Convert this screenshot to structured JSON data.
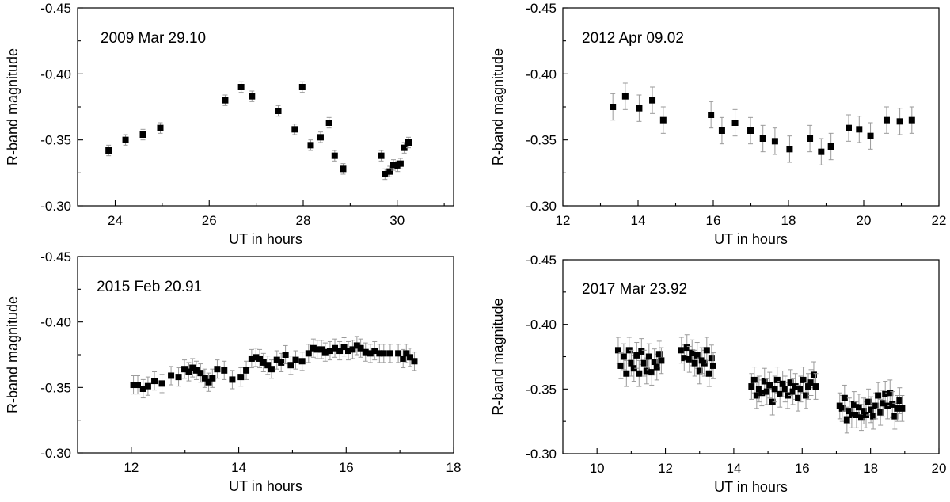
{
  "chart_data": [
    {
      "type": "scatter",
      "title": "2009 Mar 29.10",
      "xlabel": "UT in hours",
      "ylabel": "R-band magnitude",
      "xlim": [
        23.2,
        31.2
      ],
      "ylim": [
        -0.3,
        -0.45
      ],
      "xticks": [
        24,
        26,
        28,
        30
      ],
      "xtick_labels": [
        "24",
        "26",
        "28",
        "30"
      ],
      "yticks": [
        -0.45,
        -0.4,
        -0.35,
        -0.3
      ],
      "ytick_labels": [
        "-0.45",
        "-0.40",
        "-0.35",
        "-0.30"
      ],
      "error_bar": 0.004,
      "points": [
        [
          23.86,
          -0.342
        ],
        [
          24.22,
          -0.35
        ],
        [
          24.59,
          -0.354
        ],
        [
          24.96,
          -0.359
        ],
        [
          26.34,
          -0.38
        ],
        [
          26.68,
          -0.39
        ],
        [
          26.91,
          -0.383
        ],
        [
          27.47,
          -0.372
        ],
        [
          27.82,
          -0.358
        ],
        [
          27.98,
          -0.39
        ],
        [
          28.16,
          -0.346
        ],
        [
          28.37,
          -0.352
        ],
        [
          28.55,
          -0.363
        ],
        [
          28.67,
          -0.338
        ],
        [
          28.85,
          -0.328
        ],
        [
          29.66,
          -0.338
        ],
        [
          29.74,
          -0.324
        ],
        [
          29.84,
          -0.326
        ],
        [
          29.92,
          -0.331
        ],
        [
          30.01,
          -0.33
        ],
        [
          30.07,
          -0.332
        ],
        [
          30.15,
          -0.344
        ],
        [
          30.24,
          -0.348
        ]
      ]
    },
    {
      "type": "scatter",
      "title": "2012 Apr 09.02",
      "xlabel": "UT in hours",
      "ylabel": "R-band magnitude",
      "xlim": [
        12,
        22
      ],
      "ylim": [
        -0.3,
        -0.45
      ],
      "xticks": [
        12,
        14,
        16,
        18,
        20,
        22
      ],
      "xtick_labels": [
        "12",
        "14",
        "16",
        "18",
        "20",
        "22"
      ],
      "yticks": [
        -0.45,
        -0.4,
        -0.35,
        -0.3
      ],
      "ytick_labels": [
        "-0.45",
        "-0.40",
        "-0.35",
        "-0.30"
      ],
      "error_bar": 0.01,
      "points": [
        [
          13.33,
          -0.375
        ],
        [
          13.66,
          -0.383
        ],
        [
          14.03,
          -0.374
        ],
        [
          14.38,
          -0.38
        ],
        [
          14.67,
          -0.365
        ],
        [
          15.94,
          -0.369
        ],
        [
          16.23,
          -0.357
        ],
        [
          16.58,
          -0.363
        ],
        [
          16.99,
          -0.357
        ],
        [
          17.32,
          -0.351
        ],
        [
          17.64,
          -0.349
        ],
        [
          18.03,
          -0.343
        ],
        [
          18.57,
          -0.351
        ],
        [
          18.87,
          -0.341
        ],
        [
          19.13,
          -0.345
        ],
        [
          19.6,
          -0.359
        ],
        [
          19.88,
          -0.358
        ],
        [
          20.18,
          -0.353
        ],
        [
          20.61,
          -0.365
        ],
        [
          20.96,
          -0.364
        ],
        [
          21.28,
          -0.365
        ]
      ]
    },
    {
      "type": "scatter",
      "title": "2015 Feb 20.91",
      "xlabel": "UT in hours",
      "ylabel": "R-band magnitude",
      "xlim": [
        11,
        18
      ],
      "ylim": [
        -0.3,
        -0.45
      ],
      "xticks": [
        12,
        14,
        16,
        18
      ],
      "xtick_labels": [
        "12",
        "14",
        "16",
        "18"
      ],
      "yticks": [
        -0.45,
        -0.4,
        -0.35,
        -0.3
      ],
      "ytick_labels": [
        "-0.45",
        "-0.40",
        "-0.35",
        "-0.30"
      ],
      "error_bar": 0.007,
      "points": [
        [
          12.04,
          -0.352
        ],
        [
          12.12,
          -0.352
        ],
        [
          12.22,
          -0.349
        ],
        [
          12.31,
          -0.351
        ],
        [
          12.43,
          -0.355
        ],
        [
          12.57,
          -0.353
        ],
        [
          12.74,
          -0.359
        ],
        [
          12.88,
          -0.358
        ],
        [
          12.99,
          -0.364
        ],
        [
          13.07,
          -0.362
        ],
        [
          13.14,
          -0.365
        ],
        [
          13.21,
          -0.363
        ],
        [
          13.29,
          -0.361
        ],
        [
          13.37,
          -0.357
        ],
        [
          13.44,
          -0.354
        ],
        [
          13.51,
          -0.357
        ],
        [
          13.6,
          -0.364
        ],
        [
          13.73,
          -0.363
        ],
        [
          13.88,
          -0.356
        ],
        [
          14.04,
          -0.358
        ],
        [
          14.14,
          -0.363
        ],
        [
          14.24,
          -0.372
        ],
        [
          14.32,
          -0.373
        ],
        [
          14.39,
          -0.372
        ],
        [
          14.46,
          -0.369
        ],
        [
          14.54,
          -0.367
        ],
        [
          14.61,
          -0.364
        ],
        [
          14.71,
          -0.371
        ],
        [
          14.79,
          -0.369
        ],
        [
          14.87,
          -0.375
        ],
        [
          14.97,
          -0.367
        ],
        [
          15.06,
          -0.371
        ],
        [
          15.18,
          -0.37
        ],
        [
          15.3,
          -0.376
        ],
        [
          15.39,
          -0.38
        ],
        [
          15.46,
          -0.379
        ],
        [
          15.54,
          -0.379
        ],
        [
          15.61,
          -0.377
        ],
        [
          15.7,
          -0.378
        ],
        [
          15.79,
          -0.38
        ],
        [
          15.88,
          -0.378
        ],
        [
          15.96,
          -0.381
        ],
        [
          16.04,
          -0.378
        ],
        [
          16.12,
          -0.379
        ],
        [
          16.2,
          -0.382
        ],
        [
          16.27,
          -0.38
        ],
        [
          16.36,
          -0.377
        ],
        [
          16.45,
          -0.376
        ],
        [
          16.53,
          -0.378
        ],
        [
          16.62,
          -0.376
        ],
        [
          16.7,
          -0.376
        ],
        [
          16.82,
          -0.376
        ],
        [
          16.97,
          -0.376
        ],
        [
          17.06,
          -0.372
        ],
        [
          17.12,
          -0.376
        ],
        [
          17.19,
          -0.373
        ],
        [
          17.27,
          -0.37
        ]
      ]
    },
    {
      "type": "scatter",
      "title": "2017 Mar 23.92",
      "xlabel": "UT in hours",
      "ylabel": "R-band magnitude",
      "xlim": [
        9,
        20
      ],
      "ylim": [
        -0.3,
        -0.45
      ],
      "xticks": [
        10,
        12,
        14,
        16,
        18,
        20
      ],
      "xtick_labels": [
        "10",
        "12",
        "14",
        "16",
        "18",
        "20"
      ],
      "yticks": [
        -0.45,
        -0.4,
        -0.35,
        -0.3
      ],
      "ytick_labels": [
        "-0.45",
        "-0.40",
        "-0.35",
        "-0.30"
      ],
      "error_bar": 0.01,
      "points": [
        [
          10.62,
          -0.38
        ],
        [
          10.7,
          -0.368
        ],
        [
          10.78,
          -0.375
        ],
        [
          10.86,
          -0.362
        ],
        [
          10.94,
          -0.38
        ],
        [
          11.0,
          -0.37
        ],
        [
          11.08,
          -0.366
        ],
        [
          11.16,
          -0.376
        ],
        [
          11.23,
          -0.362
        ],
        [
          11.3,
          -0.379
        ],
        [
          11.38,
          -0.37
        ],
        [
          11.45,
          -0.364
        ],
        [
          11.52,
          -0.375
        ],
        [
          11.6,
          -0.363
        ],
        [
          11.68,
          -0.371
        ],
        [
          11.75,
          -0.367
        ],
        [
          11.82,
          -0.377
        ],
        [
          11.88,
          -0.372
        ],
        [
          12.47,
          -0.38
        ],
        [
          12.55,
          -0.374
        ],
        [
          12.63,
          -0.382
        ],
        [
          12.7,
          -0.373
        ],
        [
          12.78,
          -0.378
        ],
        [
          12.86,
          -0.37
        ],
        [
          12.93,
          -0.376
        ],
        [
          13.0,
          -0.364
        ],
        [
          13.07,
          -0.372
        ],
        [
          13.14,
          -0.37
        ],
        [
          13.21,
          -0.38
        ],
        [
          13.28,
          -0.362
        ],
        [
          13.35,
          -0.374
        ],
        [
          13.4,
          -0.368
        ],
        [
          14.52,
          -0.352
        ],
        [
          14.6,
          -0.357
        ],
        [
          14.67,
          -0.345
        ],
        [
          14.74,
          -0.35
        ],
        [
          14.82,
          -0.347
        ],
        [
          14.9,
          -0.356
        ],
        [
          14.97,
          -0.348
        ],
        [
          15.05,
          -0.353
        ],
        [
          15.13,
          -0.34
        ],
        [
          15.2,
          -0.35
        ],
        [
          15.27,
          -0.357
        ],
        [
          15.35,
          -0.346
        ],
        [
          15.43,
          -0.354
        ],
        [
          15.5,
          -0.35
        ],
        [
          15.58,
          -0.345
        ],
        [
          15.66,
          -0.355
        ],
        [
          15.73,
          -0.348
        ],
        [
          15.8,
          -0.352
        ],
        [
          15.88,
          -0.343
        ],
        [
          15.96,
          -0.35
        ],
        [
          16.03,
          -0.357
        ],
        [
          16.11,
          -0.345
        ],
        [
          16.18,
          -0.352
        ],
        [
          16.26,
          -0.355
        ],
        [
          16.34,
          -0.361
        ],
        [
          16.4,
          -0.352
        ],
        [
          17.1,
          -0.337
        ],
        [
          17.17,
          -0.335
        ],
        [
          17.24,
          -0.343
        ],
        [
          17.31,
          -0.326
        ],
        [
          17.38,
          -0.333
        ],
        [
          17.45,
          -0.33
        ],
        [
          17.52,
          -0.338
        ],
        [
          17.59,
          -0.33
        ],
        [
          17.66,
          -0.336
        ],
        [
          17.73,
          -0.328
        ],
        [
          17.8,
          -0.333
        ],
        [
          17.87,
          -0.33
        ],
        [
          17.94,
          -0.34
        ],
        [
          18.01,
          -0.334
        ],
        [
          18.08,
          -0.329
        ],
        [
          18.15,
          -0.337
        ],
        [
          18.22,
          -0.345
        ],
        [
          18.29,
          -0.332
        ],
        [
          18.36,
          -0.339
        ],
        [
          18.43,
          -0.346
        ],
        [
          18.5,
          -0.337
        ],
        [
          18.57,
          -0.347
        ],
        [
          18.64,
          -0.338
        ],
        [
          18.71,
          -0.329
        ],
        [
          18.78,
          -0.335
        ],
        [
          18.85,
          -0.341
        ],
        [
          18.92,
          -0.335
        ]
      ]
    }
  ]
}
